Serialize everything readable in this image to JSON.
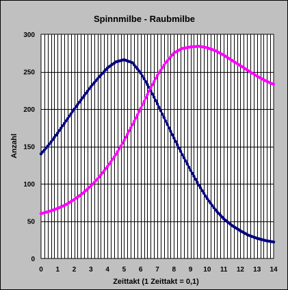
{
  "chart_data": {
    "type": "line",
    "title": "Spinnmilbe - Raubmilbe",
    "xlabel": "Zeittakt (1 Zeittakt = 0,1)",
    "ylabel": "Anzahl",
    "xlim": [
      0,
      14
    ],
    "ylim": [
      0,
      300
    ],
    "xticks": [
      "0",
      "1",
      "2",
      "3",
      "4",
      "5",
      "6",
      "7",
      "8",
      "9",
      "10",
      "11",
      "12",
      "13",
      "14"
    ],
    "yticks": [
      "0",
      "50",
      "100",
      "150",
      "200",
      "250",
      "300"
    ],
    "grid": true,
    "legend": "none",
    "plot_background": "#ffffff",
    "series": [
      {
        "color": "#000080",
        "x": [
          0,
          0.5,
          1,
          1.5,
          2,
          2.5,
          3,
          3.5,
          4,
          4.5,
          5,
          5.5,
          6,
          6.5,
          7,
          7.5,
          8,
          8.5,
          9,
          9.5,
          10,
          10.5,
          11,
          11.5,
          12,
          12.5,
          13,
          13.5,
          14
        ],
        "y": [
          140,
          153,
          168,
          184,
          200,
          215,
          230,
          243,
          255,
          263,
          266,
          262,
          248,
          229,
          207,
          184,
          161,
          139,
          118,
          98,
          80,
          65,
          53,
          44,
          37,
          31,
          27,
          24,
          22
        ]
      },
      {
        "color": "#ff00ff",
        "x": [
          0,
          0.5,
          1,
          1.5,
          2,
          2.5,
          3,
          3.5,
          4,
          4.5,
          5,
          5.5,
          6,
          6.5,
          7,
          7.5,
          8,
          8.5,
          9,
          9.5,
          10,
          10.5,
          11,
          11.5,
          12,
          12.5,
          13,
          13.5,
          14
        ],
        "y": [
          60,
          63,
          67,
          72,
          79,
          87,
          97,
          109,
          123,
          139,
          158,
          179,
          201,
          224,
          245,
          262,
          275,
          281,
          283,
          284,
          282,
          278,
          272,
          265,
          258,
          251,
          244,
          238,
          233
        ]
      }
    ]
  }
}
